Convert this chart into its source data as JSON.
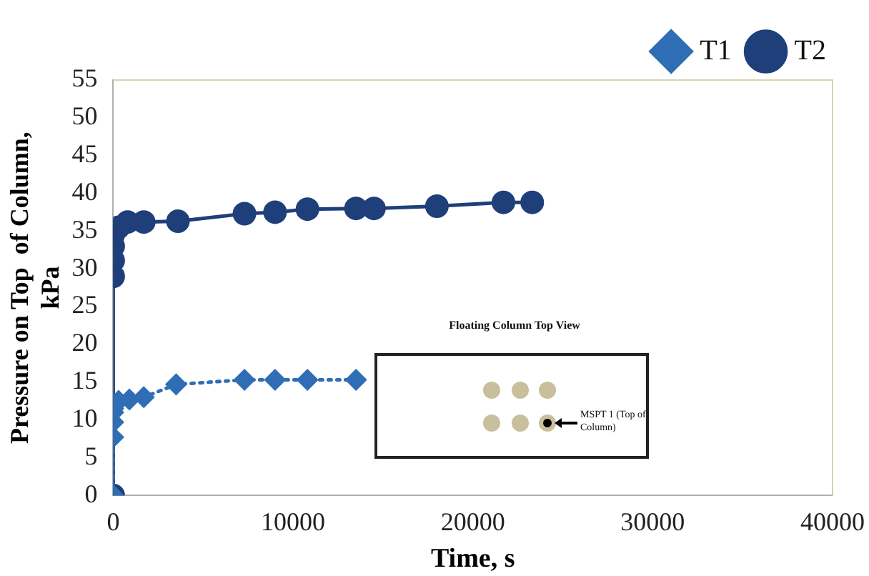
{
  "chart_data": {
    "type": "line",
    "xlabel": "Time, s",
    "ylabel": "Pressure on Top  of Column, kPa",
    "xlim": [
      0,
      40000
    ],
    "xticks": [
      0,
      10000,
      20000,
      30000,
      40000
    ],
    "ylim": [
      0,
      55
    ],
    "yticks": [
      0,
      5,
      10,
      15,
      20,
      25,
      30,
      35,
      40,
      45,
      50,
      55
    ],
    "grid": false,
    "legend": "top right",
    "series": [
      {
        "name": "T1",
        "color": "#2f6db5",
        "marker": "diamond",
        "line_style": "dotted",
        "x": [
          0,
          0,
          0,
          0,
          0,
          300,
          900,
          1700,
          3500,
          7300,
          9000,
          10800,
          13500
        ],
        "values": [
          0,
          7.7,
          9.7,
          11,
          11.5,
          12.5,
          12.7,
          13,
          14.7,
          15.3,
          15.3,
          15.3,
          15.3
        ]
      },
      {
        "name": "T2",
        "color": "#1f3f7a",
        "marker": "circle",
        "line_style": "solid",
        "x": [
          0,
          0,
          0,
          0,
          0,
          0,
          300,
          800,
          1700,
          3600,
          7300,
          9000,
          10800,
          13500,
          14500,
          18000,
          21700,
          23300
        ],
        "values": [
          0,
          29,
          31.1,
          33,
          34.5,
          35,
          35.5,
          36.2,
          36.2,
          36.3,
          37.3,
          37.5,
          37.9,
          38,
          38,
          38.3,
          38.8,
          38.8
        ]
      }
    ],
    "annotations": [
      "Floating Column Top View",
      "MSPT 1 (Top of Column)"
    ]
  }
}
